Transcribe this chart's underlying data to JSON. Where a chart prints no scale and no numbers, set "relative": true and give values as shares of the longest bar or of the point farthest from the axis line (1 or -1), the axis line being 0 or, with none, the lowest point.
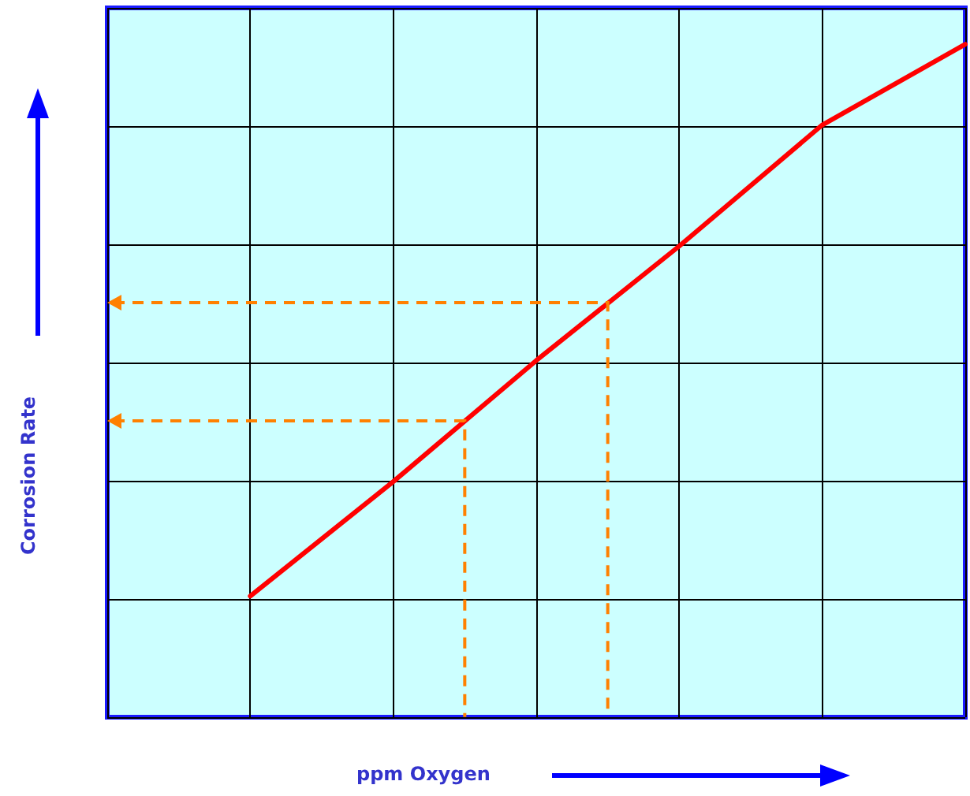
{
  "chart_data": {
    "type": "line",
    "relative": true,
    "xlabel": "ppm  Oxygen",
    "ylabel": "Corrosion Rate",
    "grid": true,
    "marker": "none",
    "line_style": "solid",
    "categories": [
      null,
      null,
      null,
      null,
      null,
      null,
      null,
      null,
      null,
      null,
      null,
      null,
      null
    ],
    "series": [
      {
        "color": "#ff0000",
        "values": [
          null,
          null,
          0.18,
          null,
          0.35,
          null,
          0.53,
          null,
          0.7,
          null,
          0.88,
          null,
          1.0
        ]
      }
    ]
  }
}
